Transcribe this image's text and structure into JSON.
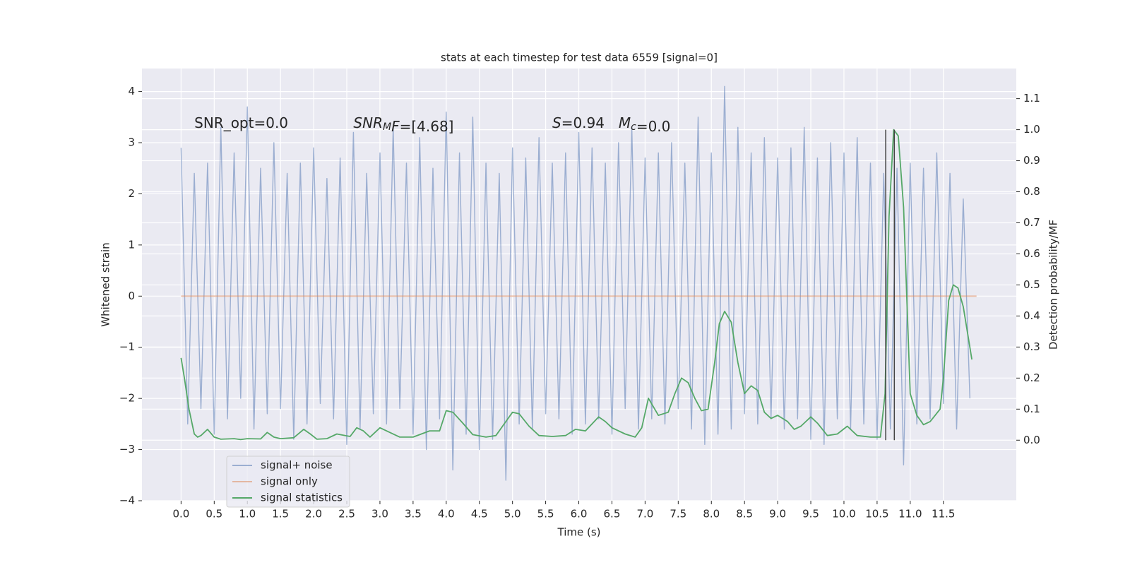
{
  "chart_data": {
    "type": "line",
    "title": "stats at each timestep for test data 6559 [signal=0]",
    "xlabel": "Time (s)",
    "ylabel": "Whitened strain",
    "y2label": "Detection probability/MF",
    "xlim": [
      -0.59,
      12.6
    ],
    "ylim": [
      -4.0,
      4.45
    ],
    "y2lim": [
      -0.195,
      1.197
    ],
    "xticks": [
      {
        "value": 0,
        "label": "0.0"
      },
      0.5,
      {
        "value": 1,
        "label": "1.0"
      },
      1.5,
      {
        "value": 2,
        "label": "2.0"
      },
      2.5,
      {
        "value": 3,
        "label": "3.0"
      },
      3.5,
      {
        "value": 4,
        "label": "4.0"
      },
      4.5,
      {
        "value": 5,
        "label": "5.0"
      },
      5.5,
      {
        "value": 6,
        "label": "6.0"
      },
      6.5,
      {
        "value": 7,
        "label": "7.0"
      },
      7.5,
      {
        "value": 8,
        "label": "8.0"
      },
      8.5,
      {
        "value": 9,
        "label": "9.0"
      },
      9.5,
      {
        "value": 10,
        "label": "10.0"
      },
      10.5,
      {
        "value": 11,
        "label": "11.0"
      },
      11.5
    ],
    "yticks": [
      {
        "value": -4,
        "label": "−4"
      },
      {
        "value": -3,
        "label": "−3"
      },
      {
        "value": -2,
        "label": "−2"
      },
      {
        "value": -1,
        "label": "−1"
      },
      0,
      1,
      2,
      3,
      4
    ],
    "y2ticks": [
      {
        "value": 0,
        "label": "0.0"
      },
      0.1,
      0.2,
      0.3,
      0.4,
      0.5,
      0.6,
      0.7,
      0.8,
      0.9,
      {
        "value": 1,
        "label": "1.0"
      },
      1.1
    ],
    "grid": true,
    "legend": "lower left",
    "series": [
      {
        "name": "signal+ noise",
        "color": "#4c72b0",
        "opacity": 0.5,
        "axis": "y",
        "x": [
          0.0,
          0.1,
          0.2,
          0.3,
          0.4,
          0.5,
          0.6,
          0.7,
          0.8,
          0.9,
          1.0,
          1.1,
          1.2,
          1.3,
          1.4,
          1.5,
          1.6,
          1.7,
          1.8,
          1.9,
          2.0,
          2.1,
          2.2,
          2.3,
          2.4,
          2.5,
          2.6,
          2.7,
          2.8,
          2.9,
          3.0,
          3.1,
          3.2,
          3.3,
          3.4,
          3.5,
          3.6,
          3.7,
          3.8,
          3.9,
          4.0,
          4.1,
          4.2,
          4.3,
          4.4,
          4.5,
          4.6,
          4.7,
          4.8,
          4.9,
          5.0,
          5.1,
          5.2,
          5.3,
          5.4,
          5.5,
          5.6,
          5.7,
          5.8,
          5.9,
          6.0,
          6.1,
          6.2,
          6.3,
          6.4,
          6.5,
          6.6,
          6.7,
          6.8,
          6.9,
          7.0,
          7.1,
          7.2,
          7.3,
          7.4,
          7.5,
          7.6,
          7.7,
          7.8,
          7.9,
          8.0,
          8.1,
          8.2,
          8.3,
          8.4,
          8.5,
          8.6,
          8.7,
          8.8,
          8.9,
          9.0,
          9.1,
          9.2,
          9.3,
          9.4,
          9.5,
          9.6,
          9.7,
          9.8,
          9.9,
          10.0,
          10.1,
          10.2,
          10.3,
          10.4,
          10.5,
          10.6,
          10.7,
          10.8,
          10.9,
          11.0,
          11.1,
          11.2,
          11.3,
          11.4,
          11.5,
          11.6,
          11.7,
          11.8,
          11.9
        ],
        "values": [
          2.9,
          -2.5,
          2.4,
          -2.2,
          2.6,
          -2.7,
          3.3,
          -2.4,
          2.8,
          -2.0,
          3.7,
          -2.6,
          2.5,
          -2.3,
          3.0,
          -2.2,
          2.4,
          -2.8,
          2.6,
          -2.5,
          2.9,
          -2.1,
          2.3,
          -2.4,
          2.7,
          -2.9,
          3.2,
          -2.6,
          2.4,
          -2.3,
          2.8,
          -2.5,
          3.3,
          -2.2,
          2.6,
          -2.7,
          3.1,
          -3.0,
          2.5,
          -2.4,
          3.6,
          -3.4,
          2.8,
          -2.7,
          3.5,
          -3.0,
          2.6,
          -2.8,
          2.4,
          -3.6,
          2.9,
          -2.5,
          2.7,
          -2.6,
          3.1,
          -2.3,
          2.6,
          -2.4,
          2.8,
          -2.7,
          3.2,
          -2.5,
          2.9,
          -2.4,
          2.6,
          -2.7,
          3.0,
          -2.2,
          3.3,
          -2.6,
          2.7,
          -2.4,
          2.8,
          -2.5,
          3.0,
          -2.2,
          2.6,
          -2.6,
          3.5,
          -2.9,
          2.8,
          -2.7,
          4.1,
          -2.6,
          3.3,
          -2.3,
          2.8,
          -2.5,
          3.1,
          -2.4,
          2.7,
          -2.6,
          2.9,
          -2.4,
          3.3,
          -2.8,
          2.7,
          -2.9,
          3.0,
          -2.4,
          2.8,
          -2.6,
          3.1,
          -2.5,
          2.6,
          -2.8,
          2.4,
          -2.6,
          2.5,
          -3.3,
          2.6,
          -2.5,
          2.5,
          -2.4,
          2.8,
          -2.1,
          2.4,
          -2.6,
          1.9,
          -2.0
        ]
      },
      {
        "name": "signal only",
        "color": "#dd8452",
        "opacity": 0.5,
        "axis": "y",
        "x": [
          0.0,
          12.0
        ],
        "values": [
          0,
          0
        ]
      },
      {
        "name": "signal statistics",
        "color": "#55a868",
        "opacity": 1,
        "axis": "y2",
        "x": [
          0.0,
          0.05,
          0.12,
          0.2,
          0.25,
          0.3,
          0.4,
          0.5,
          0.6,
          0.8,
          0.9,
          1.0,
          1.2,
          1.3,
          1.4,
          1.5,
          1.7,
          1.85,
          1.95,
          2.05,
          2.2,
          2.35,
          2.55,
          2.65,
          2.75,
          2.85,
          3.0,
          3.15,
          3.3,
          3.5,
          3.75,
          3.9,
          4.0,
          4.1,
          4.25,
          4.4,
          4.6,
          4.75,
          4.9,
          5.0,
          5.1,
          5.25,
          5.4,
          5.6,
          5.8,
          5.95,
          6.1,
          6.3,
          6.4,
          6.5,
          6.7,
          6.85,
          6.95,
          7.05,
          7.2,
          7.35,
          7.45,
          7.55,
          7.65,
          7.75,
          7.85,
          7.95,
          8.05,
          8.12,
          8.2,
          8.3,
          8.4,
          8.5,
          8.6,
          8.7,
          8.8,
          8.9,
          9.0,
          9.15,
          9.25,
          9.35,
          9.5,
          9.6,
          9.75,
          9.9,
          10.05,
          10.2,
          10.4,
          10.55,
          10.62,
          10.68,
          10.75,
          10.82,
          10.9,
          11.0,
          11.1,
          11.2,
          11.3,
          11.45,
          11.5,
          11.58,
          11.65,
          11.72,
          11.8,
          11.93
        ],
        "values": [
          0.265,
          0.2,
          0.1,
          0.02,
          0.01,
          0.015,
          0.035,
          0.01,
          0.003,
          0.005,
          0.002,
          0.005,
          0.004,
          0.025,
          0.01,
          0.005,
          0.008,
          0.035,
          0.02,
          0.003,
          0.005,
          0.02,
          0.012,
          0.04,
          0.03,
          0.01,
          0.04,
          0.025,
          0.01,
          0.01,
          0.03,
          0.03,
          0.095,
          0.09,
          0.055,
          0.018,
          0.01,
          0.015,
          0.06,
          0.09,
          0.085,
          0.045,
          0.015,
          0.012,
          0.015,
          0.035,
          0.03,
          0.075,
          0.06,
          0.04,
          0.02,
          0.01,
          0.04,
          0.135,
          0.08,
          0.09,
          0.15,
          0.2,
          0.185,
          0.135,
          0.095,
          0.1,
          0.25,
          0.375,
          0.415,
          0.38,
          0.25,
          0.15,
          0.175,
          0.16,
          0.09,
          0.07,
          0.08,
          0.06,
          0.035,
          0.045,
          0.075,
          0.055,
          0.015,
          0.02,
          0.045,
          0.015,
          0.01,
          0.01,
          0.15,
          0.72,
          1.0,
          0.98,
          0.75,
          0.15,
          0.08,
          0.05,
          0.06,
          0.1,
          0.2,
          0.45,
          0.5,
          0.49,
          0.43,
          0.26
        ]
      }
    ],
    "vlines": {
      "x": [
        10.63,
        10.76
      ],
      "ymin": 0,
      "ymax": 1,
      "axis": "y2",
      "color": "#444444"
    },
    "annotations": [
      {
        "x": 0.2,
        "y": 3.37,
        "parts": [
          {
            "text": "SNR_opt=0.0"
          }
        ]
      },
      {
        "x": 2.6,
        "y": 3.37,
        "parts": [
          {
            "text": "SNR",
            "italic": true
          },
          {
            "text": "M",
            "italic": true,
            "sub": true
          },
          {
            "text": "F",
            "italic": true
          },
          {
            "text": "=[4.68]"
          }
        ]
      },
      {
        "x": 5.6,
        "y": 3.37,
        "parts": [
          {
            "text": "S",
            "italic": true
          },
          {
            "text": "=0.94"
          }
        ]
      },
      {
        "x": 6.6,
        "y": 3.37,
        "parts": [
          {
            "text": "M",
            "italic": true
          },
          {
            "text": "c",
            "italic": true,
            "sub": true
          },
          {
            "text": "=0.0"
          }
        ]
      }
    ]
  }
}
